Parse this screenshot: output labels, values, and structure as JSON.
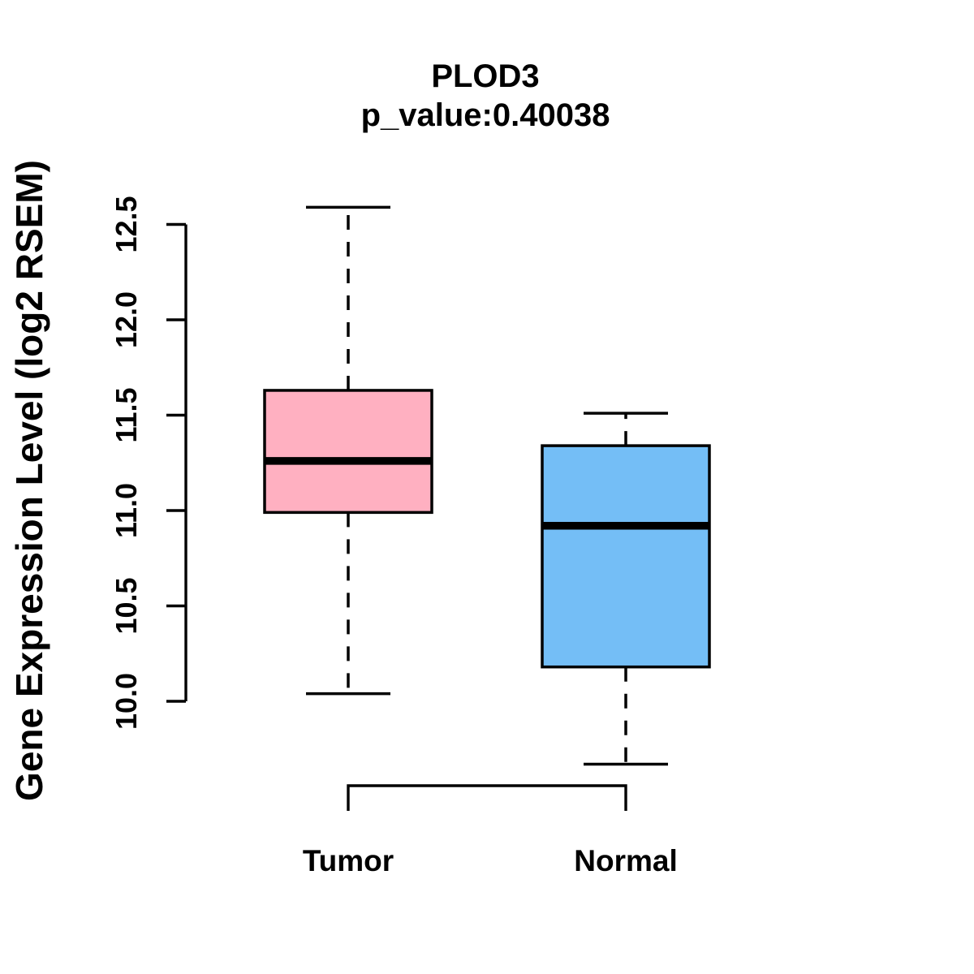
{
  "chart_data": {
    "type": "boxplot",
    "title": "PLOD3",
    "subtitle": "p_value:0.40038",
    "gene": "PLOD3",
    "p_value": 0.40038,
    "ylabel": "Gene Expression Level (log2 RSEM)",
    "xlabel": "",
    "categories": [
      "Tumor",
      "Normal"
    ],
    "yticks": [
      10.0,
      10.5,
      11.0,
      11.5,
      12.0,
      12.5
    ],
    "ytick_labels": [
      "10.0",
      "10.5",
      "11.0",
      "11.5",
      "12.0",
      "12.5"
    ],
    "ylim": [
      9.6,
      12.65
    ],
    "grid": false,
    "legend": "none",
    "axis_color": "#000000",
    "series": [
      {
        "name": "Tumor",
        "fill_color": "#FFB0C1",
        "stroke_color": "#000000",
        "lower_whisker": 10.04,
        "q1": 10.99,
        "median": 11.26,
        "q3": 11.63,
        "upper_whisker": 12.59
      },
      {
        "name": "Normal",
        "fill_color": "#74BEF6",
        "stroke_color": "#000000",
        "lower_whisker": 9.67,
        "q1": 10.18,
        "median": 10.92,
        "q3": 11.34,
        "upper_whisker": 11.51
      }
    ],
    "comparison_bracket": {
      "from": "Tumor",
      "to": "Normal"
    }
  }
}
